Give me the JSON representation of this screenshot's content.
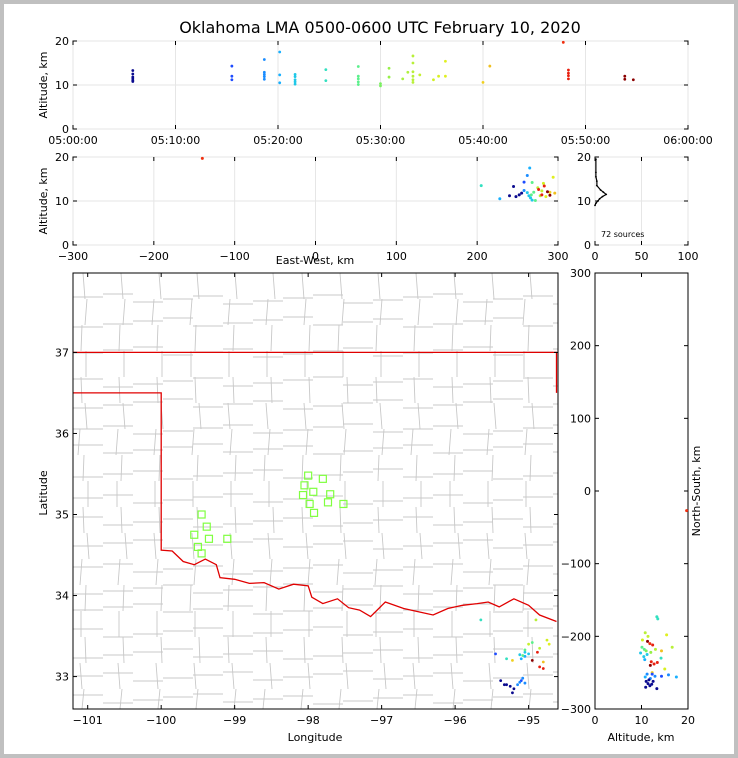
{
  "title": "Oklahoma LMA 0500-0600 UTC February 10, 2020",
  "colors": {
    "state_border": "#e00000",
    "county_lines": "#c8c8c8",
    "stations": "#80ff40",
    "grid": "#e6e6e6"
  },
  "chart_data": [
    {
      "id": "time-height",
      "type": "scatter",
      "xlabel": "",
      "ylabel": "Altitude, km",
      "xlim": [
        "05:00:00",
        "06:00:00"
      ],
      "ylim": [
        0,
        20
      ],
      "xticks": [
        "05:00:00",
        "05:10:00",
        "05:20:00",
        "05:30:00",
        "05:40:00",
        "05:50:00",
        "06:00:00"
      ],
      "yticks": [
        "0",
        "10",
        "20"
      ],
      "points": [
        {
          "t": "05:05:50",
          "alt": 13.3,
          "c": "#0b0b8f"
        },
        {
          "t": "05:05:50",
          "alt": 12.5,
          "c": "#0b0b8f"
        },
        {
          "t": "05:05:50",
          "alt": 11.8,
          "c": "#0b0b8f"
        },
        {
          "t": "05:05:50",
          "alt": 11.4,
          "c": "#0b0b8f"
        },
        {
          "t": "05:05:50",
          "alt": 11.0,
          "c": "#0b0b8f"
        },
        {
          "t": "05:05:50",
          "alt": 10.8,
          "c": "#0b0b8f"
        },
        {
          "t": "05:15:30",
          "alt": 14.3,
          "c": "#1e4cff"
        },
        {
          "t": "05:15:30",
          "alt": 12.0,
          "c": "#1e4cff"
        },
        {
          "t": "05:15:30",
          "alt": 11.2,
          "c": "#1e4cff"
        },
        {
          "t": "05:18:40",
          "alt": 15.8,
          "c": "#1a8cff"
        },
        {
          "t": "05:18:40",
          "alt": 12.9,
          "c": "#1a8cff"
        },
        {
          "t": "05:18:40",
          "alt": 12.4,
          "c": "#1a8cff"
        },
        {
          "t": "05:18:40",
          "alt": 11.9,
          "c": "#1a8cff"
        },
        {
          "t": "05:18:40",
          "alt": 11.3,
          "c": "#1a8cff"
        },
        {
          "t": "05:20:10",
          "alt": 17.5,
          "c": "#18b0ff"
        },
        {
          "t": "05:20:10",
          "alt": 12.3,
          "c": "#18b0ff"
        },
        {
          "t": "05:20:10",
          "alt": 10.5,
          "c": "#18b0ff"
        },
        {
          "t": "05:21:40",
          "alt": 12.4,
          "c": "#20c8e8"
        },
        {
          "t": "05:21:40",
          "alt": 11.9,
          "c": "#20c8e8"
        },
        {
          "t": "05:21:40",
          "alt": 11.2,
          "c": "#20c8e8"
        },
        {
          "t": "05:21:40",
          "alt": 10.7,
          "c": "#20c8e8"
        },
        {
          "t": "05:21:40",
          "alt": 10.2,
          "c": "#20c8e8"
        },
        {
          "t": "05:24:40",
          "alt": 13.5,
          "c": "#33e0c0"
        },
        {
          "t": "05:24:40",
          "alt": 11.0,
          "c": "#33e0c0"
        },
        {
          "t": "05:27:50",
          "alt": 14.2,
          "c": "#5cf08c"
        },
        {
          "t": "05:27:50",
          "alt": 12.0,
          "c": "#5cf08c"
        },
        {
          "t": "05:27:50",
          "alt": 11.4,
          "c": "#5cf08c"
        },
        {
          "t": "05:27:50",
          "alt": 10.7,
          "c": "#5cf08c"
        },
        {
          "t": "05:27:50",
          "alt": 10.1,
          "c": "#5cf08c"
        },
        {
          "t": "05:30:00",
          "alt": 10.3,
          "c": "#7af060"
        },
        {
          "t": "05:30:00",
          "alt": 9.8,
          "c": "#7af060"
        },
        {
          "t": "05:30:50",
          "alt": 13.8,
          "c": "#96f048"
        },
        {
          "t": "05:30:50",
          "alt": 11.8,
          "c": "#96f048"
        },
        {
          "t": "05:32:10",
          "alt": 11.4,
          "c": "#a8f040"
        },
        {
          "t": "05:32:40",
          "alt": 12.9,
          "c": "#b0f040"
        },
        {
          "t": "05:33:10",
          "alt": 16.6,
          "c": "#b8f038"
        },
        {
          "t": "05:33:10",
          "alt": 15.0,
          "c": "#b8f038"
        },
        {
          "t": "05:33:10",
          "alt": 13.0,
          "c": "#b8f038"
        },
        {
          "t": "05:33:10",
          "alt": 12.0,
          "c": "#b8f038"
        },
        {
          "t": "05:33:10",
          "alt": 11.2,
          "c": "#b8f038"
        },
        {
          "t": "05:33:10",
          "alt": 10.6,
          "c": "#b8f038"
        },
        {
          "t": "05:33:50",
          "alt": 12.3,
          "c": "#c4f030"
        },
        {
          "t": "05:35:10",
          "alt": 11.2,
          "c": "#d0f020"
        },
        {
          "t": "05:35:40",
          "alt": 12.0,
          "c": "#d8f020"
        },
        {
          "t": "05:36:20",
          "alt": 15.4,
          "c": "#e0f020"
        },
        {
          "t": "05:36:20",
          "alt": 12.0,
          "c": "#e0f020"
        },
        {
          "t": "05:40:00",
          "alt": 10.6,
          "c": "#f0d020"
        },
        {
          "t": "05:40:40",
          "alt": 14.3,
          "c": "#f0c020"
        },
        {
          "t": "05:47:50",
          "alt": 19.7,
          "c": "#f03010"
        },
        {
          "t": "05:48:20",
          "alt": 13.4,
          "c": "#e82010"
        },
        {
          "t": "05:48:20",
          "alt": 12.7,
          "c": "#e82010"
        },
        {
          "t": "05:48:20",
          "alt": 12.1,
          "c": "#e82010"
        },
        {
          "t": "05:48:20",
          "alt": 11.4,
          "c": "#e82010"
        },
        {
          "t": "05:53:50",
          "alt": 12.0,
          "c": "#8b0000"
        },
        {
          "t": "05:53:50",
          "alt": 11.3,
          "c": "#8b0000"
        },
        {
          "t": "05:54:40",
          "alt": 11.2,
          "c": "#8b0000"
        }
      ]
    },
    {
      "id": "ew-height",
      "type": "scatter",
      "xlabel": "East-West, km",
      "ylabel": "Altitude, km",
      "xlim": [
        -300,
        300
      ],
      "ylim": [
        0,
        20
      ],
      "xticks": [
        "−300",
        "−200",
        "−100",
        "0",
        "100",
        "200",
        "300"
      ],
      "yticks": [
        "0",
        "10",
        "20"
      ],
      "points": [
        {
          "x": -140,
          "y": 19.7,
          "c": "#f03010"
        },
        {
          "x": 205,
          "y": 13.5,
          "c": "#33e0c0"
        },
        {
          "x": 228,
          "y": 10.5,
          "c": "#18b0ff"
        },
        {
          "x": 240,
          "y": 11.2,
          "c": "#0b0b8f"
        },
        {
          "x": 245,
          "y": 13.3,
          "c": "#0b0b8f"
        },
        {
          "x": 248,
          "y": 11.0,
          "c": "#0b0b8f"
        },
        {
          "x": 252,
          "y": 11.4,
          "c": "#0b0b8f"
        },
        {
          "x": 255,
          "y": 11.8,
          "c": "#0b0b8f"
        },
        {
          "x": 258,
          "y": 12.4,
          "c": "#1a8cff"
        },
        {
          "x": 258,
          "y": 14.3,
          "c": "#1e4cff"
        },
        {
          "x": 262,
          "y": 15.8,
          "c": "#1a8cff"
        },
        {
          "x": 265,
          "y": 17.5,
          "c": "#18b0ff"
        },
        {
          "x": 262,
          "y": 11.9,
          "c": "#20c8e8"
        },
        {
          "x": 266,
          "y": 10.7,
          "c": "#20c8e8"
        },
        {
          "x": 268,
          "y": 10.2,
          "c": "#20c8e8"
        },
        {
          "x": 264,
          "y": 11.2,
          "c": "#20c8e8"
        },
        {
          "x": 270,
          "y": 12.0,
          "c": "#5cf08c"
        },
        {
          "x": 272,
          "y": 10.1,
          "c": "#5cf08c"
        },
        {
          "x": 268,
          "y": 14.2,
          "c": "#5cf08c"
        },
        {
          "x": 267,
          "y": 11.4,
          "c": "#5cf08c"
        },
        {
          "x": 275,
          "y": 13.0,
          "c": "#b8f038"
        },
        {
          "x": 278,
          "y": 11.2,
          "c": "#b8f038"
        },
        {
          "x": 280,
          "y": 12.3,
          "c": "#c4f030"
        },
        {
          "x": 282,
          "y": 14.0,
          "c": "#d0f020"
        },
        {
          "x": 285,
          "y": 11.0,
          "c": "#e0f020"
        },
        {
          "x": 290,
          "y": 12.0,
          "c": "#f0d020"
        },
        {
          "x": 294,
          "y": 15.4,
          "c": "#e0f020"
        },
        {
          "x": 296,
          "y": 11.8,
          "c": "#f0c020"
        },
        {
          "x": 276,
          "y": 12.6,
          "c": "#e82010"
        },
        {
          "x": 280,
          "y": 11.4,
          "c": "#e82010"
        },
        {
          "x": 283,
          "y": 13.4,
          "c": "#e82010"
        },
        {
          "x": 287,
          "y": 12.1,
          "c": "#8b0000"
        },
        {
          "x": 290,
          "y": 11.3,
          "c": "#8b0000"
        }
      ]
    },
    {
      "id": "altitude-histogram",
      "type": "line",
      "xlabel": "",
      "ylabel": "",
      "xlim": [
        0,
        100
      ],
      "ylim": [
        0,
        20
      ],
      "xticks": [
        "0",
        "50",
        "100"
      ],
      "yticks": [
        "0",
        "10",
        "20"
      ],
      "annotation": "72 sources",
      "bins": [
        {
          "alt": 19.5,
          "n": 1
        },
        {
          "alt": 16.5,
          "n": 1
        },
        {
          "alt": 15.5,
          "n": 1
        },
        {
          "alt": 14.5,
          "n": 2
        },
        {
          "alt": 13.5,
          "n": 2
        },
        {
          "alt": 12.5,
          "n": 6
        },
        {
          "alt": 12.0,
          "n": 9
        },
        {
          "alt": 11.5,
          "n": 12
        },
        {
          "alt": 11.0,
          "n": 8
        },
        {
          "alt": 10.5,
          "n": 5
        },
        {
          "alt": 10.0,
          "n": 3
        },
        {
          "alt": 9.5,
          "n": 1
        },
        {
          "alt": 9.0,
          "n": 0
        }
      ]
    },
    {
      "id": "plan-view",
      "type": "scatter",
      "xlabel": "Longitude",
      "ylabel": "Latitude",
      "xlim": [
        -101.2,
        -94.6
      ],
      "ylim": [
        32.6,
        37.98
      ],
      "xticks": [
        "−101",
        "−100",
        "−99",
        "−98",
        "−97",
        "−96",
        "−95"
      ],
      "yticks": [
        "33",
        "34",
        "35",
        "36",
        "37"
      ],
      "stations": [
        {
          "lon": -99.45,
          "lat": 35.0
        },
        {
          "lon": -99.38,
          "lat": 34.85
        },
        {
          "lon": -99.55,
          "lat": 34.75
        },
        {
          "lon": -99.35,
          "lat": 34.7
        },
        {
          "lon": -99.5,
          "lat": 34.6
        },
        {
          "lon": -99.45,
          "lat": 34.52
        },
        {
          "lon": -99.1,
          "lat": 34.7
        },
        {
          "lon": -98.0,
          "lat": 35.48
        },
        {
          "lon": -98.05,
          "lat": 35.36
        },
        {
          "lon": -97.93,
          "lat": 35.28
        },
        {
          "lon": -98.07,
          "lat": 35.24
        },
        {
          "lon": -97.8,
          "lat": 35.44
        },
        {
          "lon": -97.7,
          "lat": 35.25
        },
        {
          "lon": -97.98,
          "lat": 35.13
        },
        {
          "lon": -97.73,
          "lat": 35.15
        },
        {
          "lon": -97.52,
          "lat": 35.13
        },
        {
          "lon": -97.92,
          "lat": 35.02
        }
      ],
      "points": [
        {
          "lon": -95.3,
          "lat": 32.9,
          "c": "#0b0b8f"
        },
        {
          "lon": -95.25,
          "lat": 32.88,
          "c": "#0b0b8f"
        },
        {
          "lon": -95.2,
          "lat": 32.85,
          "c": "#0b0b8f"
        },
        {
          "lon": -95.22,
          "lat": 32.8,
          "c": "#0b0b8f"
        },
        {
          "lon": -95.33,
          "lat": 32.9,
          "c": "#0b0b8f"
        },
        {
          "lon": -95.38,
          "lat": 32.95,
          "c": "#0b0b8f"
        },
        {
          "lon": -95.45,
          "lat": 33.28,
          "c": "#1e4cff"
        },
        {
          "lon": -95.1,
          "lat": 32.95,
          "c": "#1e4cff"
        },
        {
          "lon": -95.15,
          "lat": 32.9,
          "c": "#1a8cff"
        },
        {
          "lon": -95.05,
          "lat": 32.92,
          "c": "#1a8cff"
        },
        {
          "lon": -95.08,
          "lat": 32.98,
          "c": "#1a8cff"
        },
        {
          "lon": -95.12,
          "lat": 32.93,
          "c": "#1a8cff"
        },
        {
          "lon": -95.05,
          "lat": 33.25,
          "c": "#18b0ff"
        },
        {
          "lon": -95.1,
          "lat": 33.22,
          "c": "#18b0ff"
        },
        {
          "lon": -95.05,
          "lat": 33.3,
          "c": "#20c8e8"
        },
        {
          "lon": -95.0,
          "lat": 33.28,
          "c": "#20c8e8"
        },
        {
          "lon": -95.12,
          "lat": 33.27,
          "c": "#20c8e8"
        },
        {
          "lon": -95.65,
          "lat": 33.7,
          "c": "#33e0c0"
        },
        {
          "lon": -95.3,
          "lat": 33.22,
          "c": "#33e0c0"
        },
        {
          "lon": -95.05,
          "lat": 33.33,
          "c": "#5cf08c"
        },
        {
          "lon": -94.95,
          "lat": 33.42,
          "c": "#5cf08c"
        },
        {
          "lon": -95.08,
          "lat": 33.26,
          "c": "#5cf08c"
        },
        {
          "lon": -94.9,
          "lat": 33.7,
          "c": "#b8f038"
        },
        {
          "lon": -94.85,
          "lat": 33.35,
          "c": "#b8f038"
        },
        {
          "lon": -95.0,
          "lat": 33.4,
          "c": "#c4f030"
        },
        {
          "lon": -94.75,
          "lat": 33.45,
          "c": "#d0f020"
        },
        {
          "lon": -94.72,
          "lat": 33.4,
          "c": "#e0f020"
        },
        {
          "lon": -95.22,
          "lat": 33.2,
          "c": "#f0d020"
        },
        {
          "lon": -94.8,
          "lat": 33.18,
          "c": "#f0c020"
        },
        {
          "lon": -94.85,
          "lat": 33.12,
          "c": "#e82010"
        },
        {
          "lon": -94.8,
          "lat": 33.1,
          "c": "#e82010"
        },
        {
          "lon": -94.88,
          "lat": 33.3,
          "c": "#e82010"
        },
        {
          "lon": -94.95,
          "lat": 33.2,
          "c": "#8b0000"
        }
      ]
    },
    {
      "id": "ns-height",
      "type": "scatter",
      "xlabel": "Altitude, km",
      "ylabel": "North-South, km",
      "xlim": [
        0,
        20
      ],
      "ylim": [
        -300,
        300
      ],
      "xticks": [
        "0",
        "10",
        "20"
      ],
      "yticks": [
        "−300",
        "−200",
        "−100",
        "0",
        "100",
        "200",
        "300"
      ],
      "points": [
        {
          "alt": 19.7,
          "ns": -27,
          "c": "#f03010"
        },
        {
          "alt": 13.3,
          "ns": -173,
          "c": "#33e0c0"
        },
        {
          "alt": 13.5,
          "ns": -176,
          "c": "#33e0c0"
        },
        {
          "alt": 10.8,
          "ns": -195,
          "c": "#b8f038"
        },
        {
          "alt": 11.4,
          "ns": -200,
          "c": "#c4f030"
        },
        {
          "alt": 10.2,
          "ns": -205,
          "c": "#d0f020"
        },
        {
          "alt": 15.4,
          "ns": -198,
          "c": "#e0f020"
        },
        {
          "alt": 11.8,
          "ns": -210,
          "c": "#f03010"
        },
        {
          "alt": 11.3,
          "ns": -207,
          "c": "#8b0000"
        },
        {
          "alt": 12.4,
          "ns": -212,
          "c": "#e82010"
        },
        {
          "alt": 10.1,
          "ns": -215,
          "c": "#5cf08c"
        },
        {
          "alt": 10.6,
          "ns": -218,
          "c": "#5cf08c"
        },
        {
          "alt": 11.0,
          "ns": -220,
          "c": "#7af060"
        },
        {
          "alt": 13.0,
          "ns": -218,
          "c": "#b8f038"
        },
        {
          "alt": 16.6,
          "ns": -215,
          "c": "#b8f038"
        },
        {
          "alt": 12.0,
          "ns": -222,
          "c": "#96f048"
        },
        {
          "alt": 14.3,
          "ns": -220,
          "c": "#f0c020"
        },
        {
          "alt": 9.8,
          "ns": -223,
          "c": "#20c8e8"
        },
        {
          "alt": 10.5,
          "ns": -228,
          "c": "#20c8e8"
        },
        {
          "alt": 11.2,
          "ns": -225,
          "c": "#20c8e8"
        },
        {
          "alt": 14.2,
          "ns": -230,
          "c": "#33e0c0"
        },
        {
          "alt": 10.7,
          "ns": -232,
          "c": "#18b0ff"
        },
        {
          "alt": 12.1,
          "ns": -235,
          "c": "#e82010"
        },
        {
          "alt": 12.7,
          "ns": -238,
          "c": "#e82010"
        },
        {
          "alt": 11.9,
          "ns": -240,
          "c": "#8b0000"
        },
        {
          "alt": 13.4,
          "ns": -236,
          "c": "#e82010"
        },
        {
          "alt": 15.0,
          "ns": -245,
          "c": "#d8f020"
        },
        {
          "alt": 12.3,
          "ns": -250,
          "c": "#f0d020"
        },
        {
          "alt": 11.2,
          "ns": -252,
          "c": "#1a8cff"
        },
        {
          "alt": 12.9,
          "ns": -255,
          "c": "#1a8cff"
        },
        {
          "alt": 11.9,
          "ns": -258,
          "c": "#1a8cff"
        },
        {
          "alt": 10.8,
          "ns": -256,
          "c": "#18b0ff"
        },
        {
          "alt": 12.3,
          "ns": -252,
          "c": "#1e4cff"
        },
        {
          "alt": 15.8,
          "ns": -253,
          "c": "#1a8cff"
        },
        {
          "alt": 14.3,
          "ns": -255,
          "c": "#1e4cff"
        },
        {
          "alt": 17.5,
          "ns": -256,
          "c": "#18b0ff"
        },
        {
          "alt": 11.0,
          "ns": -262,
          "c": "#0b0b8f"
        },
        {
          "alt": 11.4,
          "ns": -265,
          "c": "#0b0b8f"
        },
        {
          "alt": 11.8,
          "ns": -268,
          "c": "#0b0b8f"
        },
        {
          "alt": 12.5,
          "ns": -262,
          "c": "#0b0b8f"
        },
        {
          "alt": 13.3,
          "ns": -272,
          "c": "#0b0b8f"
        },
        {
          "alt": 10.9,
          "ns": -270,
          "c": "#0b0b8f"
        },
        {
          "alt": 11.6,
          "ns": -260,
          "c": "#0b0b8f"
        },
        {
          "alt": 12.2,
          "ns": -266,
          "c": "#0b0b8f"
        }
      ]
    }
  ]
}
